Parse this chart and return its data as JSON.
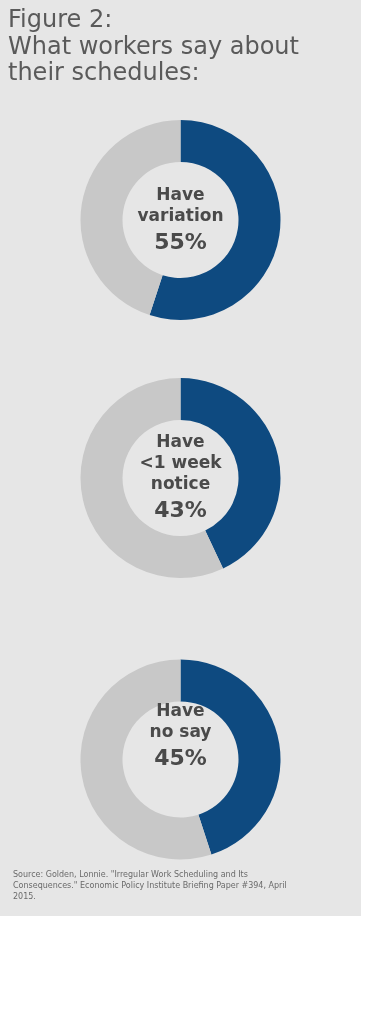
{
  "chart_data": [
    {
      "type": "donut",
      "title": "Figure 2:",
      "subtitle": "What workers say about their schedules:",
      "categories": [
        "Have\nvariation",
        null
      ],
      "values": [
        55,
        45
      ],
      "colors": [
        "#0e4a80",
        "#c8c8c8"
      ],
      "value_labels": [
        "55%",
        null
      ]
    },
    {
      "type": "donut",
      "categories": [
        "Have\n<1 week\nnotice",
        null
      ],
      "values": [
        43,
        57
      ],
      "colors": [
        "#0e4a80",
        "#c8c8c8"
      ],
      "value_labels": [
        "43%",
        null
      ]
    },
    {
      "type": "donut",
      "categories": [
        "Have\nno say",
        null
      ],
      "values": [
        45,
        55
      ],
      "colors": [
        "#0e4a80",
        "#c8c8c8"
      ],
      "value_labels": [
        "45%",
        null
      ],
      "annotations": [
        "Source: Golden, Lonnie. \"Irregular Work Scheduling and Its Consequences.\" Economic Policy Institute Briefing Paper #394, April 2015."
      ]
    }
  ]
}
